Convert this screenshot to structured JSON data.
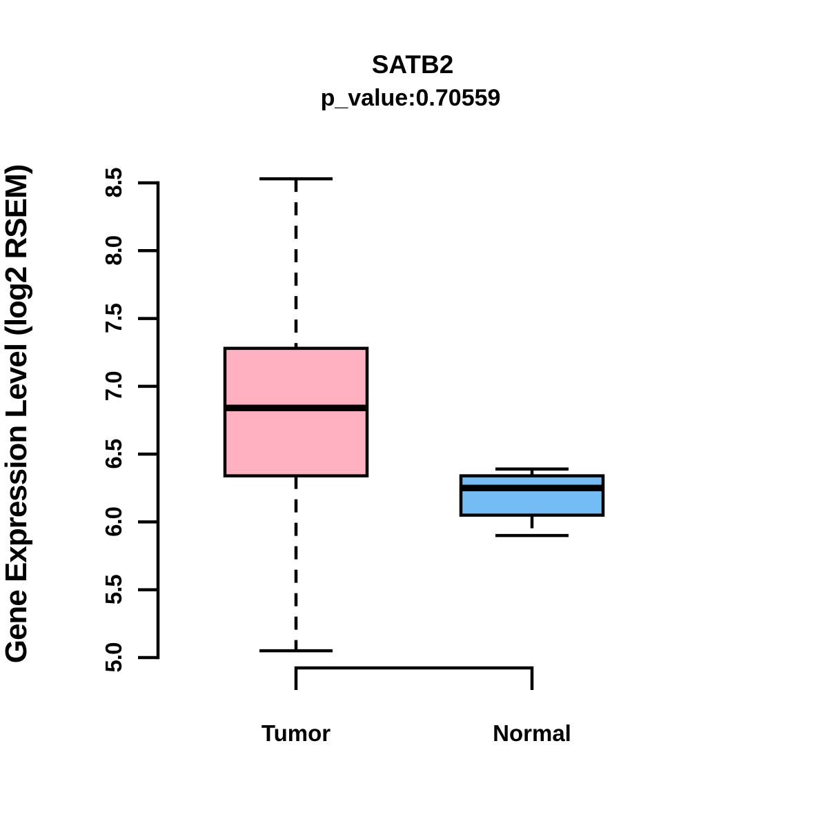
{
  "header": {
    "title": "SATB2",
    "subtitle": "p_value:0.70559"
  },
  "colors": {
    "tumor_fill": "#FFB1C1",
    "normal_fill": "#74BDF4",
    "line": "#000000",
    "background": "#FFFFFF"
  },
  "chart_data": {
    "type": "boxplot",
    "title": "SATB2",
    "subtitle": "p_value:0.70559",
    "ylabel": "Gene Expression Level (log2 RSEM)",
    "categories": [
      "Tumor",
      "Normal"
    ],
    "ylim": [
      5.0,
      8.5
    ],
    "yticks": [
      5.0,
      5.5,
      6.0,
      6.5,
      7.0,
      7.5,
      8.0,
      8.5
    ],
    "ytick_labels": [
      "5.0",
      "5.5",
      "6.0",
      "6.5",
      "7.0",
      "7.5",
      "8.0",
      "8.5"
    ],
    "grid": false,
    "legend": "none",
    "series": [
      {
        "name": "Tumor",
        "fill": "#FFB1C1",
        "whisker_low": 5.05,
        "q1": 6.34,
        "median": 6.84,
        "q3": 7.28,
        "whisker_high": 8.53
      },
      {
        "name": "Normal",
        "fill": "#74BDF4",
        "whisker_low": 5.9,
        "q1": 6.05,
        "median": 6.25,
        "q3": 6.34,
        "whisker_high": 6.39
      }
    ]
  }
}
